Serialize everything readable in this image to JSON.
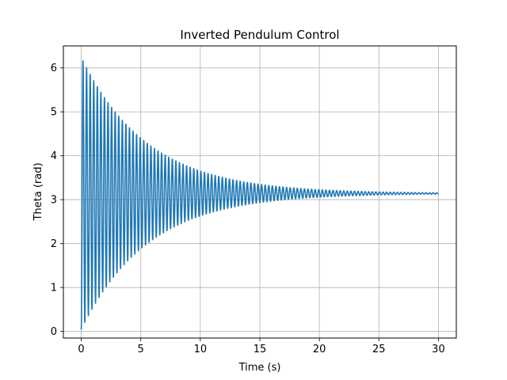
{
  "chart_data": {
    "type": "line",
    "title": "Inverted Pendulum Control",
    "xlabel": "Time (s)",
    "ylabel": "Theta (rad)",
    "xlim": [
      -1.5,
      31.5
    ],
    "ylim": [
      -0.15,
      6.5
    ],
    "xticks": [
      0,
      5,
      10,
      15,
      20,
      25,
      30
    ],
    "yticks": [
      0,
      1,
      2,
      3,
      4,
      5,
      6
    ],
    "grid": true,
    "colors": {
      "series": "#1f77b4",
      "grid": "#b0b0b0",
      "frame": "#000000"
    },
    "series": [
      {
        "model": "damped-oscillation",
        "t_start": 0,
        "t_end": 30,
        "equilibrium": 3.1416,
        "initial_amplitude": 3.1,
        "decay_rate": 0.18,
        "period": 0.3
      }
    ]
  }
}
